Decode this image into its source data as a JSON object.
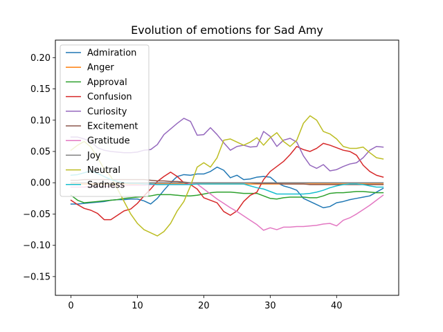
{
  "chart_data": {
    "type": "line",
    "title": "Evolution of emotions for Sad Amy",
    "xlabel": "",
    "ylabel": "",
    "xlim": [
      -2.35,
      49.35
    ],
    "ylim": [
      -0.18,
      0.228
    ],
    "x_ticks": [
      0,
      10,
      20,
      30,
      40
    ],
    "y_ticks": [
      -0.15,
      -0.1,
      -0.05,
      0.0,
      0.05,
      0.1,
      0.15,
      0.2
    ],
    "y_tick_labels": [
      "−0.15",
      "−0.10",
      "−0.05",
      "0.00",
      "0.05",
      "0.10",
      "0.15",
      "0.20"
    ],
    "grid": false,
    "legend_position": "upper-left",
    "series": [
      {
        "name": "Admiration",
        "color": "#1f77b4",
        "values": [
          -0.034,
          -0.034,
          -0.033,
          -0.032,
          -0.031,
          -0.03,
          -0.028,
          -0.027,
          -0.027,
          -0.026,
          -0.026,
          -0.029,
          -0.034,
          -0.025,
          -0.012,
          0.0,
          0.01,
          0.013,
          0.012,
          0.014,
          0.014,
          0.018,
          0.025,
          0.02,
          0.008,
          0.012,
          0.005,
          0.006,
          0.009,
          0.01,
          0.009,
          0.0,
          -0.005,
          -0.008,
          -0.012,
          -0.025,
          -0.03,
          -0.035,
          -0.04,
          -0.038,
          -0.032,
          -0.03,
          -0.027,
          -0.025,
          -0.023,
          -0.021,
          -0.015,
          -0.009
        ]
      },
      {
        "name": "Anger",
        "color": "#ff7f0e",
        "values": [
          -0.002,
          -0.002,
          -0.002,
          -0.002,
          -0.002,
          -0.002,
          -0.002,
          -0.002,
          -0.002,
          -0.002,
          -0.002,
          -0.002,
          -0.002,
          -0.002,
          -0.002,
          -0.002,
          -0.002,
          -0.002,
          -0.002,
          -0.002,
          -0.002,
          -0.002,
          -0.002,
          -0.002,
          -0.002,
          -0.002,
          -0.002,
          -0.002,
          -0.002,
          -0.002,
          -0.002,
          -0.002,
          -0.002,
          -0.002,
          -0.002,
          -0.002,
          -0.002,
          -0.002,
          -0.002,
          -0.002,
          -0.002,
          -0.002,
          -0.002,
          -0.002,
          -0.002,
          -0.002,
          -0.002,
          -0.002
        ]
      },
      {
        "name": "Approval",
        "color": "#2ca02c",
        "values": [
          -0.02,
          -0.028,
          -0.032,
          -0.031,
          -0.03,
          -0.029,
          -0.028,
          -0.027,
          -0.025,
          -0.024,
          -0.023,
          -0.022,
          -0.021,
          -0.019,
          -0.019,
          -0.019,
          -0.02,
          -0.021,
          -0.021,
          -0.02,
          -0.018,
          -0.016,
          -0.015,
          -0.015,
          -0.015,
          -0.016,
          -0.017,
          -0.017,
          -0.017,
          -0.021,
          -0.025,
          -0.026,
          -0.024,
          -0.023,
          -0.023,
          -0.023,
          -0.024,
          -0.024,
          -0.021,
          -0.017,
          -0.016,
          -0.016,
          -0.015,
          -0.014,
          -0.014,
          -0.015,
          -0.016,
          -0.016
        ]
      },
      {
        "name": "Confusion",
        "color": "#d62728",
        "values": [
          -0.028,
          -0.035,
          -0.041,
          -0.044,
          -0.049,
          -0.059,
          -0.059,
          -0.052,
          -0.045,
          -0.042,
          -0.033,
          -0.021,
          -0.01,
          0.002,
          0.01,
          0.017,
          0.01,
          0.0,
          -0.003,
          -0.01,
          -0.024,
          -0.028,
          -0.032,
          -0.046,
          -0.052,
          -0.045,
          -0.03,
          -0.02,
          -0.015,
          0.005,
          0.018,
          0.026,
          0.034,
          0.045,
          0.058,
          0.053,
          0.05,
          0.055,
          0.063,
          0.06,
          0.056,
          0.052,
          0.05,
          0.044,
          0.028,
          0.018,
          0.012,
          0.009
        ]
      },
      {
        "name": "Curiosity",
        "color": "#9467bd",
        "values": [
          0.073,
          0.073,
          0.07,
          0.066,
          0.056,
          0.052,
          0.05,
          0.049,
          0.048,
          0.048,
          0.049,
          0.052,
          0.053,
          0.061,
          0.077,
          0.086,
          0.095,
          0.103,
          0.098,
          0.076,
          0.077,
          0.088,
          0.077,
          0.064,
          0.052,
          0.058,
          0.06,
          0.057,
          0.058,
          0.082,
          0.074,
          0.058,
          0.068,
          0.071,
          0.065,
          0.043,
          0.028,
          0.023,
          0.029,
          0.019,
          0.021,
          0.026,
          0.03,
          0.032,
          0.04,
          0.052,
          0.058,
          0.057
        ]
      },
      {
        "name": "Excitement",
        "color": "#8c564b",
        "values": [
          0.004,
          0.004,
          0.005,
          0.005,
          0.005,
          0.005,
          0.005,
          0.005,
          0.005,
          0.005,
          0.005,
          0.005,
          0.004,
          0.003,
          0.003,
          0.002,
          0.002,
          0.001,
          0.0,
          0.0,
          0.0,
          0.0,
          0.0,
          0.0,
          0.0,
          0.0,
          0.0,
          0.0,
          -0.001,
          -0.001,
          -0.001,
          -0.001,
          -0.002,
          -0.002,
          -0.002,
          -0.002,
          -0.003,
          -0.003,
          -0.003,
          -0.003,
          -0.003,
          -0.003,
          -0.003,
          -0.003,
          -0.003,
          -0.003,
          -0.003,
          -0.003
        ]
      },
      {
        "name": "Gratitude",
        "color": "#e377c2",
        "values": [
          -0.007,
          -0.007,
          -0.007,
          -0.006,
          -0.006,
          -0.006,
          -0.006,
          -0.005,
          -0.005,
          -0.004,
          -0.004,
          -0.004,
          -0.003,
          -0.003,
          -0.003,
          -0.003,
          -0.003,
          -0.003,
          -0.002,
          -0.002,
          -0.01,
          -0.018,
          -0.026,
          -0.033,
          -0.04,
          -0.046,
          -0.053,
          -0.06,
          -0.067,
          -0.076,
          -0.072,
          -0.075,
          -0.071,
          -0.071,
          -0.07,
          -0.07,
          -0.069,
          -0.068,
          -0.066,
          -0.065,
          -0.069,
          -0.06,
          -0.056,
          -0.05,
          -0.043,
          -0.036,
          -0.028,
          -0.02
        ]
      },
      {
        "name": "Joy",
        "color": "#7f7f7f",
        "values": [
          0.0,
          0.0,
          0.0,
          0.0,
          0.0,
          0.0,
          0.0,
          0.0,
          0.0,
          0.0,
          0.0,
          0.0,
          0.0,
          0.0,
          0.0,
          0.0,
          0.0,
          0.0,
          0.0,
          0.0,
          0.0,
          0.0,
          0.0,
          0.0,
          0.0,
          0.0,
          0.0,
          0.0,
          0.0,
          0.0,
          0.0,
          0.0,
          0.0,
          0.0,
          0.0,
          0.0,
          0.0,
          0.0,
          0.0,
          0.0,
          0.0,
          0.0,
          0.0,
          0.0,
          0.0,
          0.0,
          0.0,
          0.0
        ]
      },
      {
        "name": "Neutral",
        "color": "#bcbd22",
        "values": [
          0.052,
          0.06,
          0.066,
          0.057,
          0.04,
          0.022,
          0.01,
          -0.01,
          -0.03,
          -0.05,
          -0.065,
          -0.075,
          -0.08,
          -0.085,
          -0.078,
          -0.065,
          -0.045,
          -0.03,
          -0.005,
          0.025,
          0.032,
          0.025,
          0.04,
          0.068,
          0.07,
          0.065,
          0.06,
          0.065,
          0.072,
          0.06,
          0.072,
          0.08,
          0.066,
          0.058,
          0.068,
          0.095,
          0.107,
          0.1,
          0.082,
          0.078,
          0.07,
          0.058,
          0.055,
          0.055,
          0.057,
          0.048,
          0.04,
          0.038
        ]
      },
      {
        "name": "Sadness",
        "color": "#17becf",
        "values": [
          0.012,
          0.013,
          0.016,
          0.019,
          0.015,
          0.01,
          0.005,
          0.002,
          0.0,
          -0.001,
          -0.001,
          -0.002,
          -0.002,
          -0.003,
          -0.003,
          -0.003,
          -0.003,
          -0.003,
          -0.003,
          -0.002,
          -0.002,
          -0.002,
          -0.002,
          -0.002,
          -0.002,
          -0.002,
          -0.002,
          -0.005,
          -0.008,
          -0.01,
          -0.014,
          -0.018,
          -0.018,
          -0.018,
          -0.018,
          -0.018,
          -0.017,
          -0.015,
          -0.012,
          -0.008,
          -0.005,
          -0.003,
          -0.002,
          -0.002,
          -0.003,
          -0.005,
          -0.007,
          -0.007
        ]
      }
    ]
  }
}
